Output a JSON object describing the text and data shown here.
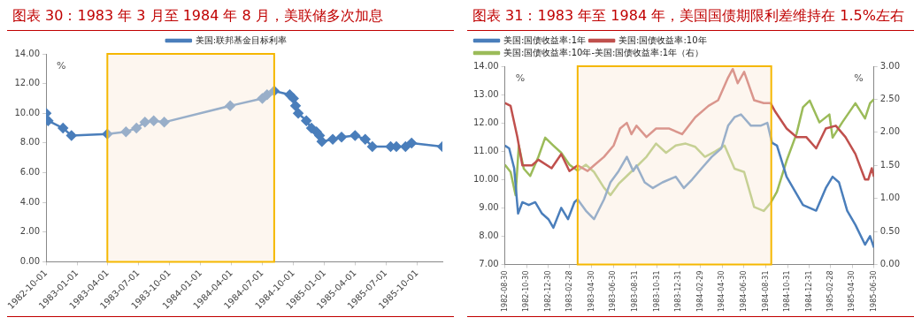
{
  "chart_data": [
    {
      "type": "line",
      "title": "图表 30：1983 年 3 月至 1984 年 8 月，美联储多次加息",
      "ylabel": "%",
      "legend": "top",
      "grid": false,
      "marker": "diamond",
      "xlim": [
        "1982-10-01",
        "1985-12-15"
      ],
      "xticks": [
        "1982-10-01",
        "1983-01-01",
        "1983-04-01",
        "1983-07-01",
        "1983-10-01",
        "1984-01-01",
        "1984-04-01",
        "1984-07-01",
        "1984-10-01",
        "1985-01-01",
        "1985-04-01",
        "1985-07-01",
        "1985-10-01"
      ],
      "ylim": [
        0,
        14
      ],
      "yticks": [
        {
          "value": 0,
          "label": "0.00"
        },
        {
          "value": 2,
          "label": "2.00"
        },
        {
          "value": 4,
          "label": "4.00"
        },
        {
          "value": 6,
          "label": "6.00"
        },
        {
          "value": 8,
          "label": "8.00"
        },
        {
          "value": 10,
          "label": "10.00"
        },
        {
          "value": 12,
          "label": "12.00"
        },
        {
          "value": 14,
          "label": "14.00"
        }
      ],
      "bands": [
        {
          "axis": "x",
          "from": "1983-03-31",
          "to": "1984-08-05",
          "color": "#fbeadb"
        }
      ],
      "series": [
        {
          "name": "美国:联邦基金目标利率",
          "color": "#4a7ebb",
          "x": [
            "1982-10-01",
            "1982-10-07",
            "1982-11-20",
            "1982-12-15",
            "1983-03-31",
            "1983-05-25",
            "1983-06-25",
            "1983-07-20",
            "1983-08-15",
            "1983-09-15",
            "1984-03-28",
            "1984-07-01",
            "1984-07-15",
            "1984-08-05",
            "1984-09-20",
            "1984-10-01",
            "1984-10-07",
            "1984-10-15",
            "1984-11-08",
            "1984-11-23",
            "1984-12-08",
            "1984-12-17",
            "1984-12-24",
            "1985-01-25",
            "1985-02-20",
            "1985-04-01",
            "1985-05-01",
            "1985-05-22",
            "1985-07-15",
            "1985-08-01",
            "1985-08-28",
            "1985-09-15",
            "1985-12-15"
          ],
          "values": [
            10.0,
            9.5,
            9.0,
            8.5,
            8.6,
            8.75,
            9.0,
            9.4,
            9.5,
            9.4,
            10.5,
            11.0,
            11.25,
            11.5,
            11.25,
            11.0,
            10.5,
            10.0,
            9.5,
            9.0,
            8.75,
            8.5,
            8.1,
            8.25,
            8.4,
            8.5,
            8.25,
            7.75,
            7.75,
            7.75,
            7.75,
            8.0,
            7.75
          ]
        }
      ]
    },
    {
      "type": "line",
      "title": "图表 31：1983 年至 1984 年，美国国债期限利差维持在 1.5%左右",
      "ylabel": "%",
      "y2label": "%",
      "legend": "top left",
      "grid": false,
      "marker": "none",
      "xlim": [
        "1982-08-30",
        "1985-06-30"
      ],
      "xticks": [
        "1982-08-30",
        "1982-10-30",
        "1982-12-30",
        "1983-02-28",
        "1983-04-30",
        "1983-06-30",
        "1983-08-31",
        "1983-10-31",
        "1983-12-31",
        "1984-02-29",
        "1984-04-30",
        "1984-06-30",
        "1984-08-31",
        "1984-10-31",
        "1984-12-31",
        "1985-02-28",
        "1985-04-30",
        "1985-06-30"
      ],
      "ylim": [
        7,
        14
      ],
      "yticks": [
        {
          "value": 7,
          "label": "7.00"
        },
        {
          "value": 8,
          "label": "8.00"
        },
        {
          "value": 9,
          "label": "9.00"
        },
        {
          "value": 10,
          "label": "10.00"
        },
        {
          "value": 11,
          "label": "11.00"
        },
        {
          "value": 12,
          "label": "12.00"
        },
        {
          "value": 13,
          "label": "13.00"
        },
        {
          "value": 14,
          "label": "14.00"
        }
      ],
      "y2lim": [
        0,
        3
      ],
      "y2ticks": [
        {
          "value": 0,
          "label": "0.00"
        },
        {
          "value": 0.5,
          "label": "0.50"
        },
        {
          "value": 1,
          "label": "1.00"
        },
        {
          "value": 1.5,
          "label": "1.50"
        },
        {
          "value": 2,
          "label": "2.00"
        },
        {
          "value": 2.5,
          "label": "2.50"
        },
        {
          "value": 3,
          "label": "3.00"
        }
      ],
      "bands": [
        {
          "axis": "x",
          "from": "1983-03-22",
          "to": "1984-09-15",
          "color": "#fbeadb"
        }
      ],
      "series": [
        {
          "name": "美国:国债收益率:1年",
          "color": "#4a7ebb",
          "x": [
            "1982-08-30",
            "1982-09-11",
            "1982-09-25",
            "1982-10-06",
            "1982-10-18",
            "1982-11-05",
            "1982-11-23",
            "1982-12-12",
            "1982-12-30",
            "1983-01-13",
            "1983-02-04",
            "1983-02-23",
            "1983-03-13",
            "1983-03-22",
            "1983-04-14",
            "1983-05-07",
            "1983-06-04",
            "1983-06-22",
            "1983-07-15",
            "1983-08-07",
            "1983-08-25",
            "1983-09-03",
            "1983-09-26",
            "1983-10-19",
            "1983-11-15",
            "1983-12-22",
            "1984-01-14",
            "1984-02-06",
            "1984-03-04",
            "1984-04-01",
            "1984-04-28",
            "1984-05-17",
            "1984-06-04",
            "1984-06-22",
            "1984-07-20",
            "1984-08-16",
            "1984-09-04",
            "1984-09-17",
            "1984-10-01",
            "1984-10-28",
            "1984-11-20",
            "1984-12-13",
            "1985-01-19",
            "1985-02-15",
            "1985-03-06",
            "1985-03-24",
            "1985-04-16",
            "1985-05-09",
            "1985-06-05",
            "1985-06-19",
            "1985-06-30"
          ],
          "values": [
            11.2,
            11.1,
            10.4,
            8.8,
            9.2,
            9.1,
            9.2,
            8.8,
            8.6,
            8.3,
            9.0,
            8.6,
            9.2,
            9.3,
            8.9,
            8.6,
            9.3,
            9.9,
            10.3,
            10.8,
            10.3,
            10.5,
            9.9,
            9.7,
            9.9,
            10.1,
            9.7,
            10.0,
            10.4,
            10.8,
            11.1,
            11.9,
            12.2,
            12.3,
            11.9,
            11.9,
            12.0,
            11.3,
            11.2,
            10.1,
            9.6,
            9.1,
            8.9,
            9.7,
            10.1,
            9.9,
            8.9,
            8.4,
            7.7,
            8.0,
            7.6
          ]
        },
        {
          "name": "美国:国债收益率:10年",
          "color": "#c0504d",
          "x": [
            "1982-08-30",
            "1982-09-15",
            "1982-10-04",
            "1982-10-18",
            "1982-11-14",
            "1982-12-02",
            "1983-01-08",
            "1983-02-04",
            "1983-02-27",
            "1983-03-22",
            "1983-04-19",
            "1983-05-07",
            "1983-06-04",
            "1983-07-01",
            "1983-07-19",
            "1983-08-07",
            "1983-08-20",
            "1983-09-03",
            "1983-10-01",
            "1983-10-28",
            "1983-12-04",
            "1984-01-09",
            "1984-02-15",
            "1984-03-23",
            "1984-04-19",
            "1984-05-17",
            "1984-05-30",
            "1984-06-13",
            "1984-07-01",
            "1984-07-29",
            "1984-08-25",
            "1984-09-13",
            "1984-09-26",
            "1984-10-28",
            "1984-11-25",
            "1984-12-22",
            "1985-01-19",
            "1985-02-15",
            "1985-03-15",
            "1985-04-11",
            "1985-05-09",
            "1985-06-05",
            "1985-06-14",
            "1985-06-24",
            "1985-06-30"
          ],
          "values": [
            12.7,
            12.6,
            11.5,
            10.5,
            10.5,
            10.7,
            10.4,
            10.9,
            10.3,
            10.5,
            10.3,
            10.5,
            10.8,
            11.2,
            11.8,
            12.0,
            11.6,
            11.9,
            11.5,
            11.8,
            11.8,
            11.6,
            12.2,
            12.6,
            12.8,
            13.6,
            13.9,
            13.4,
            13.8,
            12.8,
            12.7,
            12.7,
            12.4,
            11.8,
            11.5,
            11.5,
            11.1,
            11.8,
            11.9,
            11.5,
            10.9,
            10.0,
            10.0,
            10.4,
            10.1
          ]
        },
        {
          "name": "美国:国债收益率:10年-美国:国债收益率:1年（右）",
          "color": "#9bbb59",
          "axis": "y2",
          "x": [
            "1982-08-30",
            "1982-09-15",
            "1982-09-29",
            "1982-10-08",
            "1982-10-22",
            "1982-11-09",
            "1982-12-02",
            "1982-12-21",
            "1983-01-13",
            "1983-02-04",
            "1983-02-27",
            "1983-03-22",
            "1983-04-14",
            "1983-05-07",
            "1983-06-04",
            "1983-06-22",
            "1983-07-15",
            "1983-08-07",
            "1983-09-03",
            "1983-10-01",
            "1983-10-28",
            "1983-11-25",
            "1983-12-22",
            "1984-01-19",
            "1984-02-15",
            "1984-03-13",
            "1984-04-10",
            "1984-05-07",
            "1984-06-04",
            "1984-07-01",
            "1984-07-29",
            "1984-08-25",
            "1984-09-13",
            "1984-10-01",
            "1984-10-28",
            "1984-11-25",
            "1984-12-13",
            "1985-01-01",
            "1985-01-28",
            "1985-02-25",
            "1985-03-06",
            "1985-04-02",
            "1985-05-09",
            "1985-06-05",
            "1985-06-19",
            "1985-06-30"
          ],
          "values": [
            1.51,
            1.4,
            1.05,
            1.8,
            1.45,
            1.34,
            1.63,
            1.92,
            1.8,
            1.69,
            1.51,
            1.42,
            1.51,
            1.4,
            1.16,
            1.05,
            1.22,
            1.34,
            1.48,
            1.63,
            1.83,
            1.69,
            1.8,
            1.83,
            1.78,
            1.63,
            1.71,
            1.8,
            1.45,
            1.4,
            0.87,
            0.81,
            0.93,
            1.1,
            1.57,
            1.98,
            2.38,
            2.48,
            2.15,
            2.27,
            1.92,
            2.15,
            2.44,
            2.21,
            2.44,
            2.5
          ]
        }
      ]
    }
  ]
}
